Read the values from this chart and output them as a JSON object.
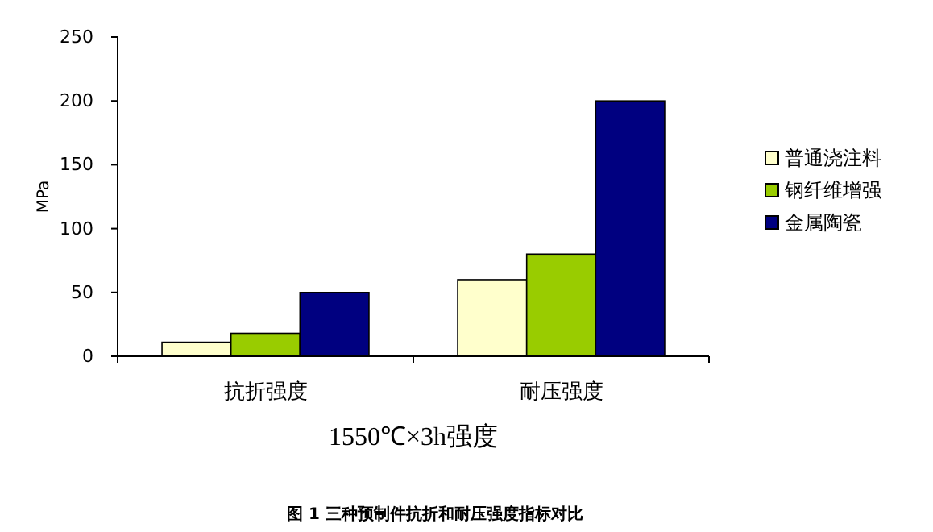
{
  "chart_data": {
    "type": "bar",
    "categories": [
      "抗折强度",
      "耐压强度"
    ],
    "series": [
      {
        "name": "普通浇注料",
        "color": "#ffffcc",
        "values": [
          11,
          60
        ]
      },
      {
        "name": "钢纤维增强",
        "color": "#99cc00",
        "values": [
          18,
          80
        ]
      },
      {
        "name": "金属陶瓷",
        "color": "#000080",
        "values": [
          50,
          200
        ]
      }
    ],
    "ylim": [
      0,
      250
    ],
    "yticks": [
      0,
      50,
      100,
      150,
      200,
      250
    ],
    "ylabel": "MPa",
    "xlabel": "1550℃×3h强度",
    "annotations": [
      "图 1  三种预制件抗折和耐压强度指标对比"
    ],
    "grid": false,
    "legend": "right"
  }
}
